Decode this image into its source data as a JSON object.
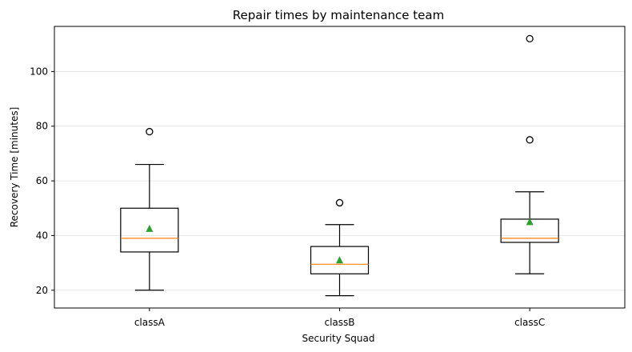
{
  "chart_data": {
    "type": "box",
    "title": "Repair times by maintenance team",
    "xlabel": "Security Squad",
    "ylabel": "Recovery Time [minutes]",
    "ylim": [
      13.5,
      116.5
    ],
    "yticks": [
      20,
      40,
      60,
      80,
      100
    ],
    "grid": "y",
    "categories": [
      "classA",
      "classB",
      "classC"
    ],
    "boxes": [
      {
        "category": "classA",
        "whisker_low": 20,
        "q1": 34,
        "median": 39,
        "q3": 50,
        "whisker_high": 66,
        "mean": 42.5,
        "outliers": [
          78
        ]
      },
      {
        "category": "classB",
        "whisker_low": 18,
        "q1": 26,
        "median": 29.5,
        "q3": 36,
        "whisker_high": 44,
        "mean": 31,
        "outliers": [
          52
        ]
      },
      {
        "category": "classC",
        "whisker_low": 26,
        "q1": 37.5,
        "median": 39,
        "q3": 46,
        "whisker_high": 56,
        "mean": 45,
        "outliers": [
          75,
          112
        ]
      }
    ],
    "colors": {
      "box": "#000000",
      "median": "#ff7f0e",
      "mean": "#2ca02c",
      "grid": "#e6e6e6"
    }
  }
}
